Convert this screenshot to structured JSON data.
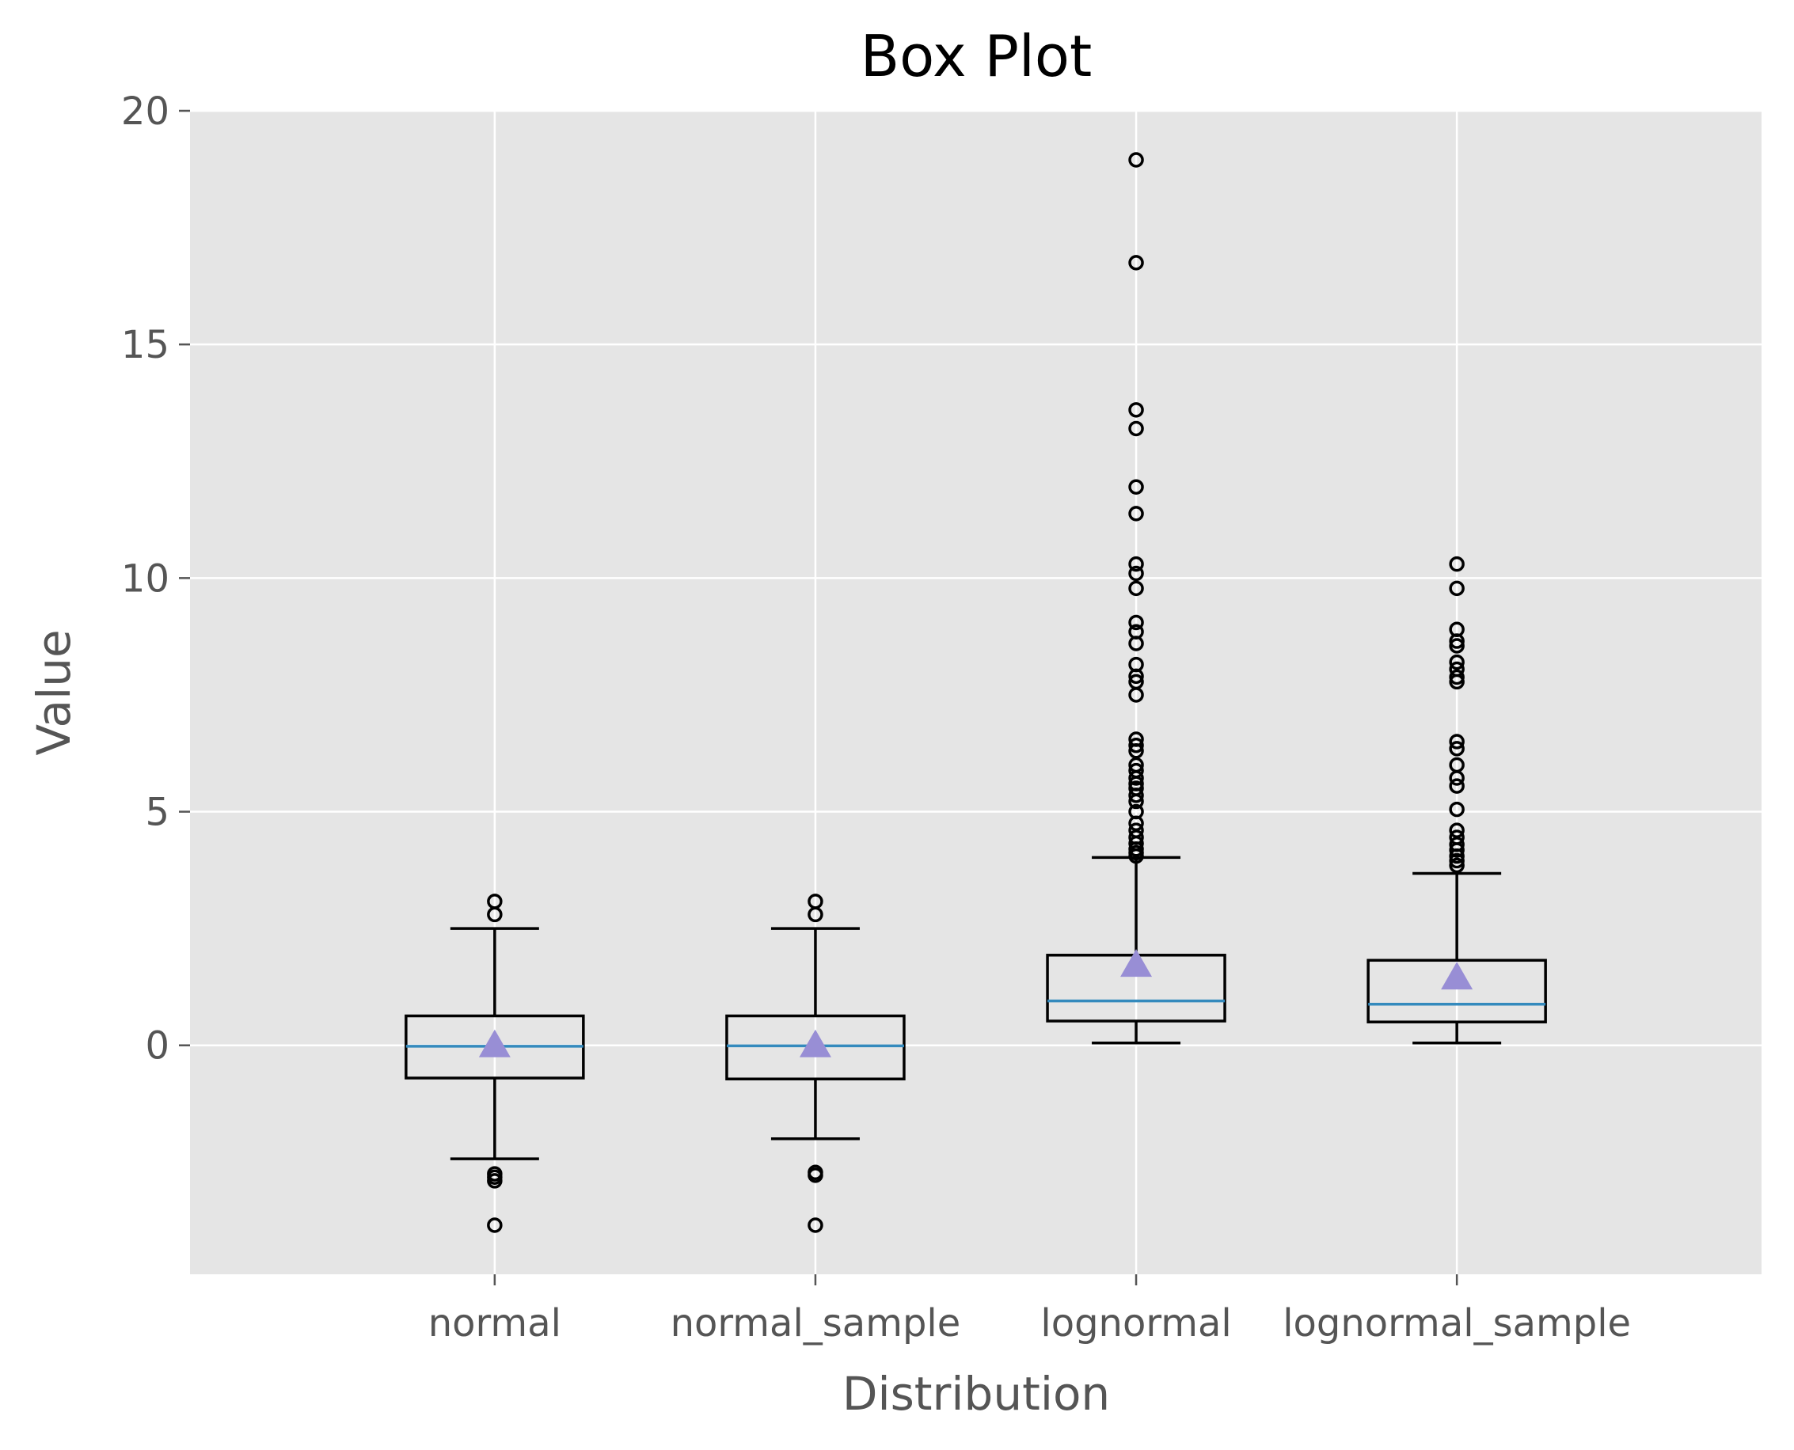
{
  "chart_data": {
    "type": "box",
    "title": "Box Plot",
    "xlabel": "Distribution",
    "ylabel": "Value",
    "ylim": [
      -4.9,
      20
    ],
    "yticks": [
      0,
      5,
      10,
      15,
      20
    ],
    "grid": true,
    "style": {
      "background": "#e5e5e5",
      "grid_color": "#ffffff",
      "box_color": "#000000",
      "median_color": "#348abd",
      "mean_color": "#988ed5",
      "tick_color": "#555555"
    },
    "categories": [
      "normal",
      "normal_sample",
      "lognormal",
      "lognormal_sample"
    ],
    "boxes": [
      {
        "name": "normal",
        "whisker_low": -2.43,
        "q1": -0.7,
        "median": -0.02,
        "q3": 0.63,
        "whisker_high": 2.5,
        "mean": 0.0,
        "outliers": [
          3.08,
          2.8,
          -2.75,
          -2.82,
          -2.9,
          -3.85
        ]
      },
      {
        "name": "normal_sample",
        "whisker_low": -2.0,
        "q1": -0.72,
        "median": -0.01,
        "q3": 0.63,
        "whisker_high": 2.5,
        "mean": 0.0,
        "outliers": [
          3.08,
          2.8,
          -2.72,
          -2.78,
          -3.85
        ]
      },
      {
        "name": "lognormal",
        "whisker_low": 0.05,
        "q1": 0.52,
        "median": 0.95,
        "q3": 1.93,
        "whisker_high": 4.02,
        "mean": 1.72,
        "outliers": [
          18.95,
          16.75,
          13.6,
          13.2,
          11.95,
          11.38,
          10.3,
          10.1,
          9.78,
          9.05,
          8.85,
          8.6,
          8.15,
          7.9,
          7.78,
          7.5,
          6.55,
          6.42,
          6.3,
          6.0,
          5.88,
          5.72,
          5.6,
          5.5,
          5.35,
          5.22,
          5.0,
          4.75,
          4.6,
          4.45,
          4.32,
          4.2,
          4.12,
          4.05
        ]
      },
      {
        "name": "lognormal_sample",
        "whisker_low": 0.05,
        "q1": 0.5,
        "median": 0.88,
        "q3": 1.82,
        "whisker_high": 3.68,
        "mean": 1.45,
        "outliers": [
          10.3,
          9.78,
          8.9,
          8.65,
          8.55,
          8.2,
          8.05,
          7.88,
          7.78,
          6.5,
          6.35,
          6.0,
          5.72,
          5.55,
          5.05,
          4.6,
          4.45,
          4.3,
          4.18,
          4.05,
          3.95,
          3.85
        ]
      }
    ]
  }
}
